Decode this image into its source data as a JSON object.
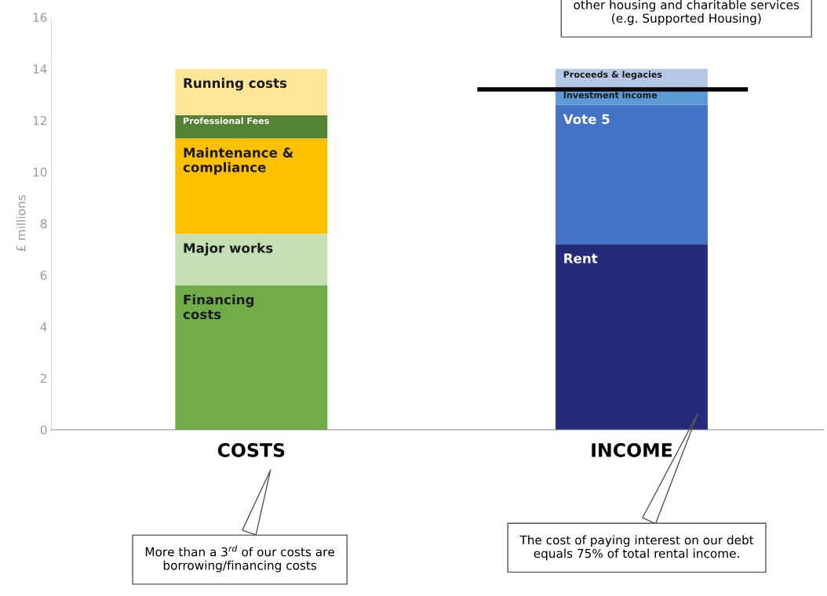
{
  "chart_data": {
    "type": "bar",
    "stacked": true,
    "ylabel": "£ millions",
    "categories": [
      "COSTS",
      "INCOME"
    ],
    "ylim": [
      0,
      16
    ],
    "yticks": [
      0,
      2,
      4,
      6,
      8,
      10,
      12,
      14,
      16
    ],
    "grid": false,
    "series": [
      {
        "name": "Financing\ncosts",
        "color": "#70ad47",
        "values": [
          5.6,
          null
        ]
      },
      {
        "name": "Major works",
        "color": "#c5e0b4",
        "values": [
          2.0,
          null
        ]
      },
      {
        "name": "Maintenance &\ncompliance",
        "color": "#ffc000",
        "values": [
          3.7,
          null
        ]
      },
      {
        "name": "Professional Fees",
        "color": "#548235",
        "values": [
          0.9,
          null
        ]
      },
      {
        "name": "Running costs",
        "color": "#ffe699",
        "values": [
          1.8,
          null
        ]
      },
      {
        "name": "Rent",
        "color": "#262a7a",
        "values": [
          null,
          7.2
        ]
      },
      {
        "name": "Vote 5",
        "color": "#4472c4",
        "values": [
          null,
          5.4
        ]
      },
      {
        "name": "Investment income",
        "color": "#5b9bd5",
        "values": [
          null,
          0.6
        ]
      },
      {
        "name": "Proceeds & legacies",
        "color": "#b4c7e7",
        "values": [
          null,
          0.8
        ]
      }
    ],
    "ref_lines": [
      {
        "axis": "y",
        "value": 13.2,
        "label": null,
        "color": "#000000",
        "line_style": "solid"
      }
    ],
    "annotations": [
      "other housing and charitable services\n(e.g. Supported Housing)",
      "More than a 3$^{rd}$ of our costs are\nborrowing/financing costs",
      "The cost of paying interest on our debt\nequals 75% of total rental income."
    ]
  }
}
